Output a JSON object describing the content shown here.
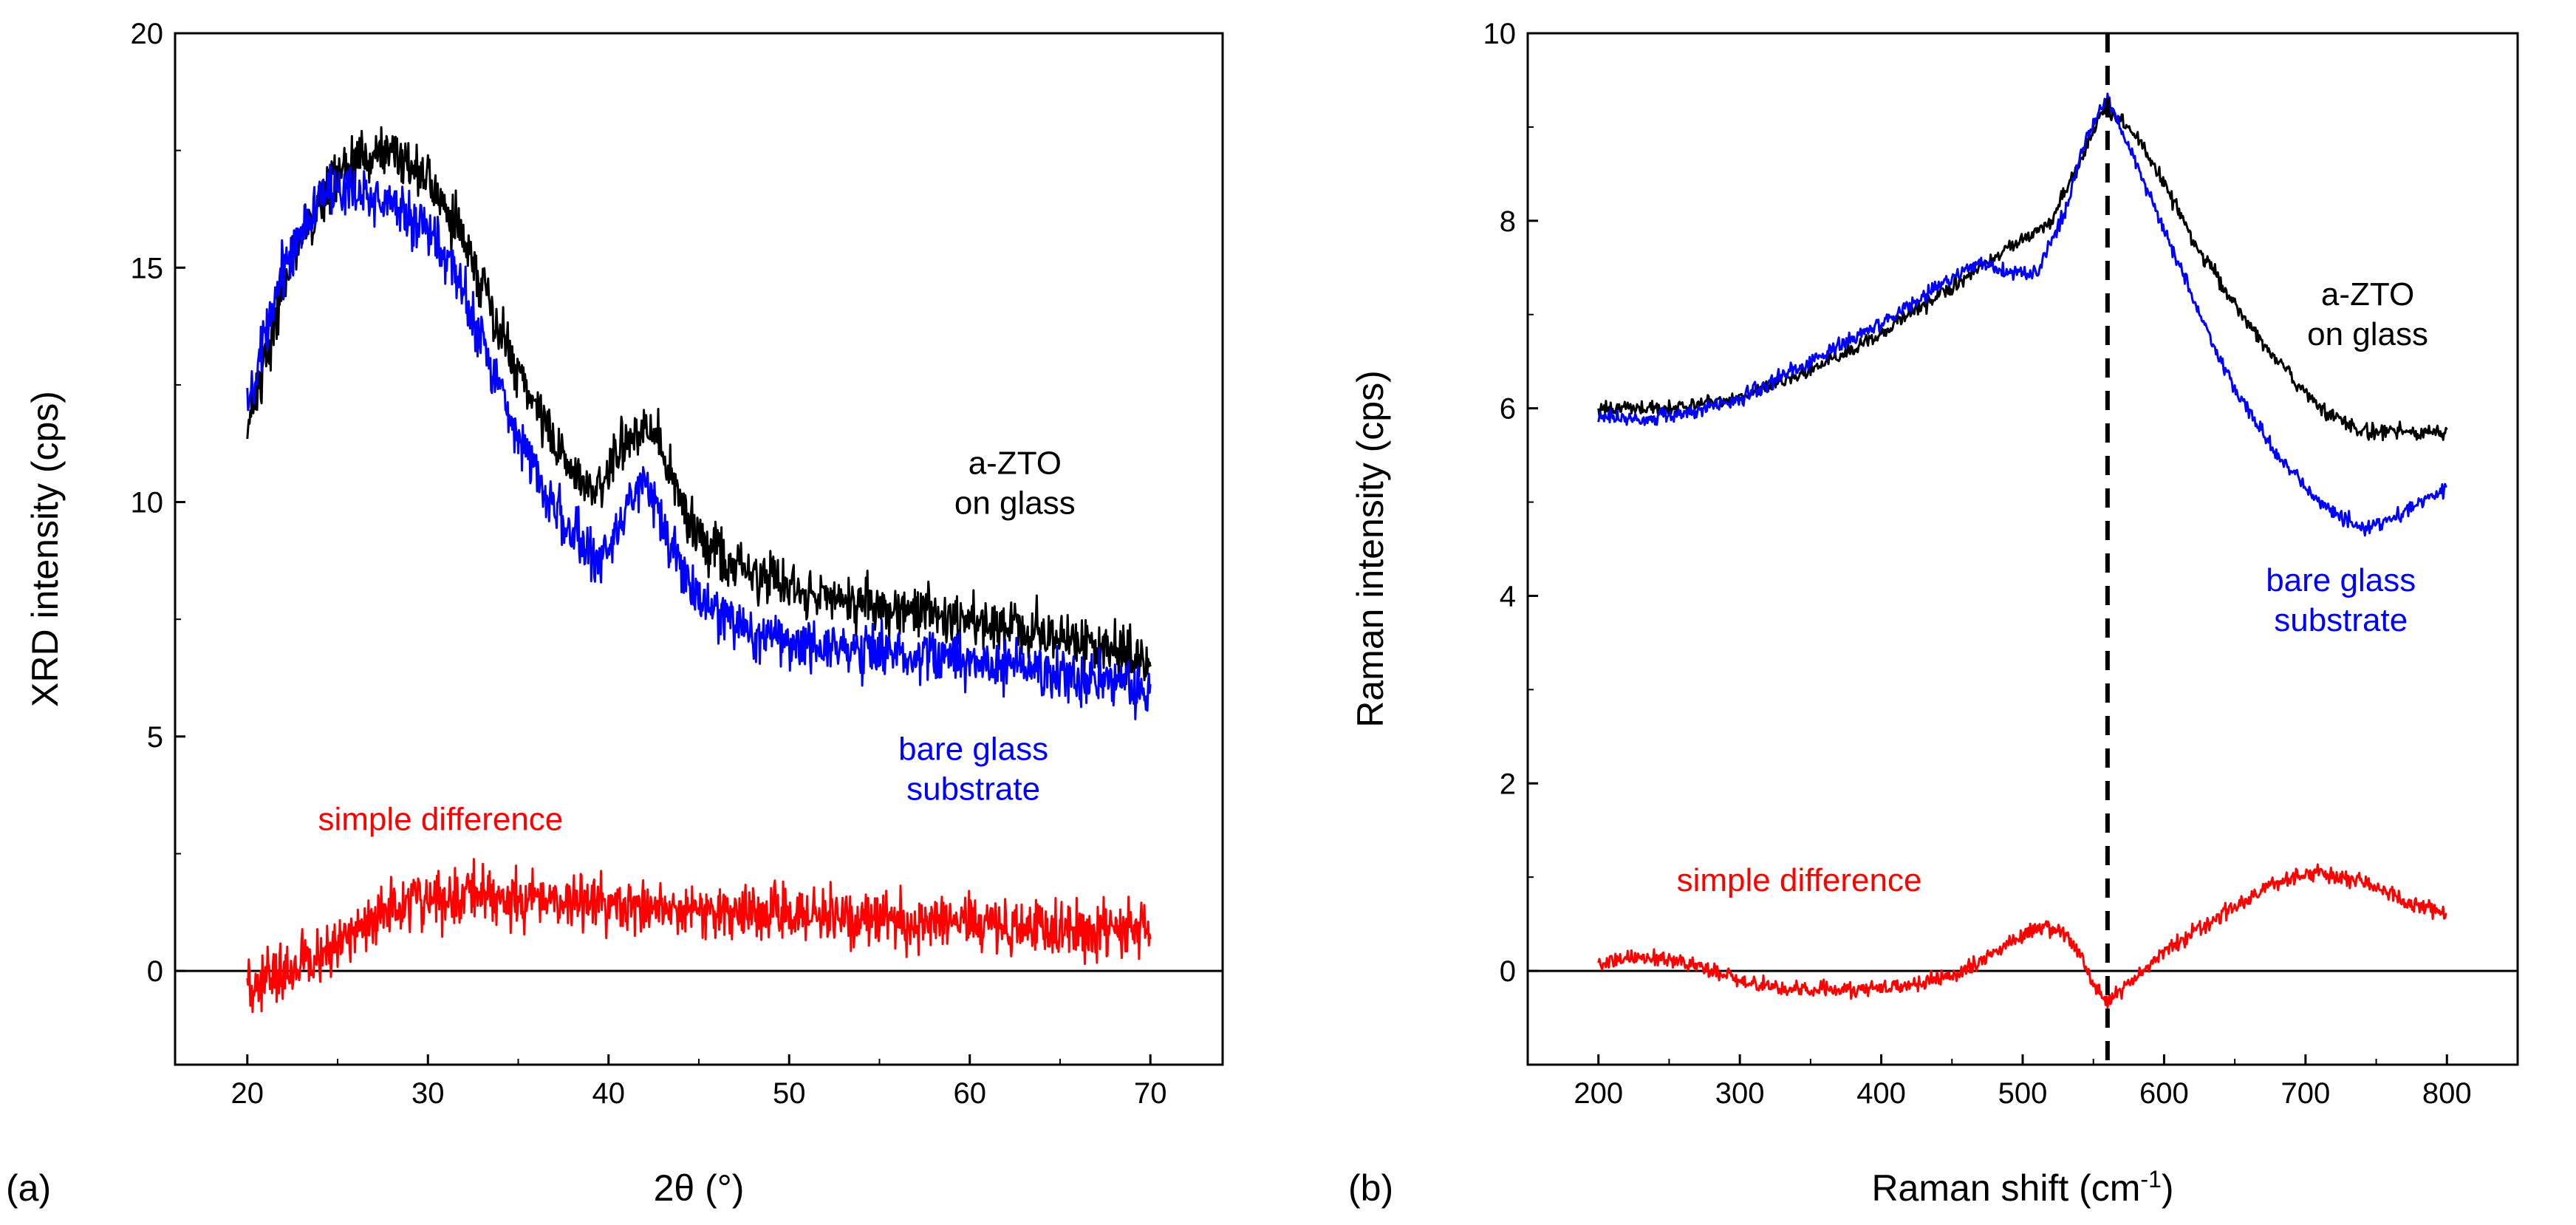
{
  "chart_data": [
    {
      "type": "line",
      "panel_label": "(a)",
      "xlabel": "2θ (°)",
      "ylabel": "XRD intensity (cps)",
      "xlim": [
        16,
        74
      ],
      "ylim": [
        -2,
        20
      ],
      "xticks": [
        20,
        30,
        40,
        50,
        60,
        70
      ],
      "yticks": [
        0,
        5,
        10,
        15,
        20
      ],
      "zero_line": true,
      "grid": false,
      "noise": 0.55,
      "series": [
        {
          "color": "#000000",
          "x": [
            20,
            22,
            24,
            26,
            28,
            30,
            32,
            34,
            36,
            38,
            39.5,
            41,
            42,
            43,
            45,
            48,
            52,
            56,
            60,
            64,
            68,
            70
          ],
          "y": [
            11.6,
            14.6,
            16.5,
            17.3,
            17.5,
            16.9,
            15.6,
            13.6,
            12.0,
            10.6,
            10.3,
            11.3,
            11.8,
            11.0,
            9.2,
            8.4,
            8.0,
            7.7,
            7.5,
            7.2,
            6.8,
            6.5
          ]
        },
        {
          "color": "#0000ff",
          "x": [
            20,
            22,
            24,
            26,
            28,
            30,
            32,
            34,
            36,
            38,
            39.5,
            41,
            42,
            43,
            45,
            48,
            52,
            56,
            60,
            64,
            68,
            70
          ],
          "y": [
            11.9,
            15.0,
            16.6,
            16.6,
            16.4,
            15.8,
            14.5,
            12.4,
            10.6,
            9.3,
            8.7,
            9.9,
            10.5,
            9.4,
            7.8,
            7.2,
            6.9,
            6.8,
            6.6,
            6.4,
            6.2,
            5.9
          ]
        },
        {
          "color": "#ff0000",
          "x": [
            20,
            22,
            24,
            26,
            28,
            30,
            32,
            34,
            36,
            40,
            45,
            50,
            55,
            60,
            65,
            70
          ],
          "y": [
            -0.4,
            0.0,
            0.3,
            0.9,
            1.3,
            1.5,
            1.6,
            1.6,
            1.5,
            1.4,
            1.3,
            1.2,
            1.1,
            1.0,
            0.9,
            0.8
          ]
        }
      ],
      "annotations": [
        {
          "lines": [
            "a-ZTO",
            "on glass"
          ],
          "color": "#000000",
          "x": 62.5,
          "y": 10.6
        },
        {
          "lines": [
            "bare glass",
            "substrate"
          ],
          "color": "#0000ff",
          "x": 60.2,
          "y": 4.5
        },
        {
          "lines": [
            "simple difference"
          ],
          "color": "#ff0000",
          "x": 30.7,
          "y": 3.0
        }
      ]
    },
    {
      "type": "line",
      "panel_label": "(b)",
      "xlabel": "Raman shift (cm",
      "xlabel_sup": "-1",
      "xlabel_end": ")",
      "ylabel": "Raman intensity (cps)",
      "xlim": [
        150,
        850
      ],
      "ylim": [
        -1,
        10
      ],
      "xticks": [
        200,
        300,
        400,
        500,
        600,
        700,
        800
      ],
      "yticks": [
        0,
        2,
        4,
        6,
        8,
        10
      ],
      "zero_line": true,
      "dashed_vline": 560,
      "grid": false,
      "noise": 0.08,
      "series": [
        {
          "color": "#000000",
          "x": [
            200,
            250,
            300,
            350,
            400,
            450,
            480,
            500,
            520,
            540,
            555,
            565,
            580,
            600,
            620,
            650,
            680,
            710,
            740,
            770,
            800
          ],
          "y": [
            6.0,
            6.0,
            6.1,
            6.4,
            6.8,
            7.3,
            7.6,
            7.8,
            8.0,
            8.6,
            9.15,
            9.15,
            8.9,
            8.4,
            7.8,
            7.1,
            6.5,
            6.0,
            5.75,
            5.75,
            5.75
          ]
        },
        {
          "color": "#0000ff",
          "x": [
            200,
            250,
            300,
            350,
            400,
            450,
            470,
            490,
            510,
            530,
            545,
            560,
            575,
            600,
            625,
            650,
            680,
            710,
            740,
            770,
            800
          ],
          "y": [
            5.9,
            5.9,
            6.1,
            6.5,
            6.9,
            7.4,
            7.55,
            7.45,
            7.45,
            8.1,
            8.9,
            9.3,
            8.8,
            7.9,
            7.0,
            6.2,
            5.5,
            5.0,
            4.7,
            4.9,
            5.15
          ]
        },
        {
          "color": "#ff0000",
          "x": [
            200,
            230,
            260,
            300,
            340,
            380,
            420,
            460,
            490,
            510,
            525,
            540,
            552,
            560,
            575,
            600,
            640,
            680,
            710,
            740,
            770,
            800
          ],
          "y": [
            0.1,
            0.15,
            0.1,
            -0.1,
            -0.2,
            -0.2,
            -0.15,
            0.0,
            0.3,
            0.45,
            0.45,
            0.2,
            -0.2,
            -0.35,
            -0.15,
            0.2,
            0.6,
            0.95,
            1.05,
            0.95,
            0.75,
            0.6
          ]
        }
      ],
      "annotations": [
        {
          "lines": [
            "a-ZTO",
            "on glass"
          ],
          "color": "#000000",
          "x": 744,
          "y": 7.1
        },
        {
          "lines": [
            "bare glass",
            "substrate"
          ],
          "color": "#0000ff",
          "x": 725,
          "y": 4.05
        },
        {
          "lines": [
            "simple difference"
          ],
          "color": "#ff0000",
          "x": 342,
          "y": 0.85
        }
      ]
    }
  ]
}
